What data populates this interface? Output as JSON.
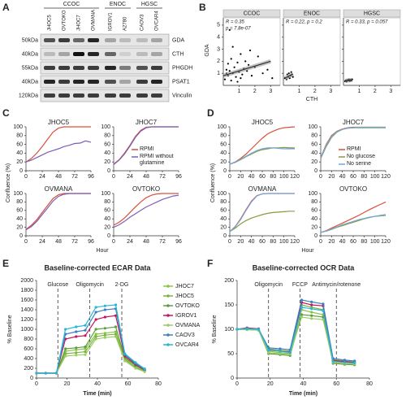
{
  "chart_data": [
    {
      "type": "blot",
      "label": "A",
      "groups": [
        {
          "name": "CCOC",
          "lanes": [
            "JHOC5",
            "OVTOKO",
            "JHOC7",
            "OVMANA"
          ]
        },
        {
          "name": "ENOC",
          "lanes": [
            "IGROV1",
            "A2780"
          ]
        },
        {
          "name": "HGSC",
          "lanes": [
            "CAOV3",
            "OVCAR4"
          ]
        }
      ],
      "rows": [
        {
          "marker": "50kDa",
          "protein": "GDA",
          "bands": [
            0.7,
            0.8,
            0.6,
            0.9,
            0.3,
            0.2,
            0.2,
            0.3
          ]
        },
        {
          "marker": "40kDa",
          "protein": "CTH",
          "bands": [
            0.2,
            0.3,
            1.0,
            0.9,
            0.6,
            0.1,
            0.2,
            0.3
          ]
        },
        {
          "marker": "55kDa",
          "protein": "PHGDH",
          "bands": [
            0.8,
            0.8,
            0.8,
            0.8,
            0.9,
            0.5,
            0.7,
            0.8
          ]
        },
        {
          "marker": "40kDa",
          "protein": "PSAT1",
          "bands": [
            0.9,
            0.8,
            0.9,
            0.9,
            0.7,
            0.3,
            0.8,
            0.9
          ]
        },
        {
          "marker": "120kDa",
          "protein": "Vinculin",
          "bands": [
            0.8,
            0.8,
            0.8,
            0.8,
            0.8,
            0.8,
            0.8,
            0.8
          ]
        }
      ]
    },
    {
      "type": "scatter",
      "label": "B",
      "xlabel": "CTH",
      "ylabel": "GDA",
      "xlim": [
        0,
        3.6
      ],
      "xticks": [
        1,
        2,
        3
      ],
      "ylim": [
        0,
        5.6
      ],
      "yticks": [
        1,
        2,
        3,
        4,
        5
      ],
      "facets": [
        {
          "name": "CCOC",
          "annotations": [
            "R = 0.35",
            "p = 7.8e-07"
          ],
          "x": [
            0.1,
            0.2,
            0.3,
            0.3,
            0.4,
            0.5,
            0.5,
            0.6,
            0.7,
            0.8,
            0.9,
            1.0,
            1.1,
            1.2,
            1.3,
            1.4,
            1.5,
            1.6,
            1.8,
            2.0,
            2.2,
            2.5,
            2.8,
            3.1,
            0.4,
            0.6,
            0.9,
            1.1,
            0.2,
            1.7
          ],
          "y": [
            0.5,
            1.0,
            0.8,
            1.8,
            1.2,
            0.4,
            2.2,
            1.0,
            1.5,
            0.7,
            1.9,
            1.1,
            2.6,
            0.9,
            1.4,
            2.0,
            1.2,
            1.7,
            0.8,
            1.5,
            2.4,
            1.0,
            1.3,
            0.6,
            4.6,
            3.2,
            0.3,
            0.6,
            1.3,
            2.9
          ],
          "fit_x": [
            0,
            3
          ],
          "fit_y": [
            0.8,
            2.0
          ]
        },
        {
          "name": "ENOC",
          "annotations": [
            "R = 0.22, p = 0.2"
          ],
          "x": [
            0.1,
            0.2,
            0.25,
            0.3,
            0.35,
            0.4,
            0.45,
            0.5,
            0.55,
            0.6
          ],
          "y": [
            0.6,
            0.5,
            0.9,
            0.7,
            1.0,
            0.6,
            0.8,
            1.1,
            0.9,
            0.7
          ],
          "fit_x": [
            0.1,
            0.6
          ],
          "fit_y": [
            0.6,
            0.95
          ]
        },
        {
          "name": "HGSC",
          "annotations": [
            "R = 0.33, p = 0.057"
          ],
          "x": [
            0.1,
            0.15,
            0.2,
            0.25,
            0.3,
            0.35,
            0.4,
            0.45,
            0.5,
            0.55
          ],
          "y": [
            0.35,
            0.4,
            0.3,
            0.45,
            0.4,
            0.5,
            0.35,
            0.45,
            0.4,
            0.5
          ],
          "fit_x": [
            0.1,
            0.55
          ],
          "fit_y": [
            0.38,
            0.46
          ]
        }
      ]
    },
    {
      "type": "line",
      "label": "C",
      "xlabel": "Hour",
      "ylabel": "Confluence (%)",
      "xlim": [
        0,
        96
      ],
      "xticks": [
        0,
        24,
        48,
        72,
        96
      ],
      "ylim": [
        0,
        100
      ],
      "yticks": [
        0,
        20,
        40,
        60,
        80,
        100
      ],
      "x": [
        0,
        8,
        16,
        24,
        32,
        40,
        48,
        56,
        64,
        72,
        80,
        88,
        96
      ],
      "series": [
        {
          "name": "RPMI",
          "color": "#d94f3a"
        },
        {
          "name": "RPMI without glutamine",
          "color": "#7b5fb5"
        }
      ],
      "panels": [
        {
          "title": "JHOC5",
          "values": [
            [
              20,
              28,
              40,
              55,
              72,
              88,
              97,
              100,
              100,
              100,
              100,
              100,
              100
            ],
            [
              20,
              24,
              30,
              36,
              42,
              46,
              50,
              55,
              58,
              62,
              63,
              68,
              65
            ]
          ]
        },
        {
          "title": "JHOC7",
          "values": [
            [
              15,
              25,
              40,
              58,
              78,
              92,
              99,
              100,
              100,
              100,
              100,
              100,
              100
            ],
            [
              14,
              24,
              38,
              56,
              76,
              90,
              98,
              100,
              100,
              100,
              100,
              100,
              100
            ]
          ]
        },
        {
          "title": "OVMANA",
          "values": [
            [
              15,
              25,
              38,
              55,
              72,
              88,
              97,
              100,
              100,
              100,
              100,
              100,
              100
            ],
            [
              14,
              22,
              34,
              50,
              66,
              82,
              93,
              98,
              100,
              100,
              100,
              100,
              100
            ]
          ]
        },
        {
          "title": "OVTOKO",
          "values": [
            [
              25,
              32,
              42,
              55,
              68,
              80,
              90,
              96,
              99,
              100,
              100,
              100,
              100
            ],
            [
              20,
              26,
              34,
              44,
              52,
              60,
              68,
              74,
              80,
              86,
              90,
              94,
              96
            ]
          ]
        }
      ]
    },
    {
      "type": "line",
      "label": "D",
      "xlabel": "Hour",
      "ylabel": "Confluence (%)",
      "xlim": [
        0,
        120
      ],
      "xticks": [
        0,
        20,
        40,
        60,
        80,
        100,
        120
      ],
      "ylim": [
        0,
        100
      ],
      "yticks": [
        0,
        20,
        40,
        60,
        80,
        100
      ],
      "x": [
        0,
        10,
        20,
        30,
        40,
        50,
        60,
        70,
        80,
        90,
        100,
        110,
        120
      ],
      "series": [
        {
          "name": "RPMI",
          "color": "#d94f3a"
        },
        {
          "name": "No glucose",
          "color": "#8a9a3c"
        },
        {
          "name": "No serine",
          "color": "#6fa8dc"
        }
      ],
      "panels": [
        {
          "title": "JHOC5",
          "values": [
            [
              15,
              20,
              28,
              38,
              50,
              62,
              74,
              84,
              90,
              95,
              98,
              99,
              100
            ],
            [
              15,
              19,
              25,
              32,
              38,
              44,
              48,
              50,
              52,
              52,
              53,
              52,
              52
            ],
            [
              15,
              19,
              26,
              33,
              40,
              46,
              50,
              52,
              52,
              51,
              50,
              50,
              50
            ]
          ]
        },
        {
          "title": "JHOC7",
          "values": [
            [
              30,
              60,
              80,
              90,
              95,
              98,
              99,
              99,
              99,
              99,
              99,
              99,
              99
            ],
            [
              28,
              55,
              76,
              88,
              94,
              97,
              98,
              98,
              98,
              98,
              98,
              98,
              98
            ],
            [
              29,
              58,
              78,
              89,
              94,
              97,
              98,
              99,
              99,
              99,
              99,
              99,
              99
            ]
          ]
        },
        {
          "title": "OVMANA",
          "values": [
            [
              10,
              22,
              40,
              62,
              82,
              95,
              99,
              100,
              100,
              100,
              100,
              100,
              100
            ],
            [
              10,
              18,
              28,
              36,
              42,
              46,
              50,
              53,
              55,
              56,
              57,
              58,
              58
            ],
            [
              10,
              21,
              38,
              60,
              80,
              94,
              99,
              100,
              100,
              100,
              100,
              100,
              100
            ]
          ]
        },
        {
          "title": "OVTOKO",
          "values": [
            [
              8,
              12,
              18,
              24,
              30,
              36,
              42,
              48,
              55,
              62,
              68,
              74,
              80
            ],
            [
              8,
              11,
              15,
              20,
              24,
              28,
              32,
              36,
              40,
              43,
              46,
              48,
              50
            ],
            [
              8,
              11,
              16,
              21,
              26,
              30,
              34,
              38,
              41,
              44,
              46,
              47,
              48
            ]
          ]
        }
      ]
    },
    {
      "type": "line",
      "label": "E",
      "title": "Baseline-corrected ECAR Data",
      "xlabel": "Time (min)",
      "ylabel": "% Baseline",
      "xlim": [
        0,
        80
      ],
      "xticks": [
        0,
        20,
        40,
        60,
        80
      ],
      "ylim": [
        0,
        2000
      ],
      "yticks": [
        0,
        200,
        400,
        600,
        800,
        1000,
        1200,
        1400,
        1600,
        1800,
        2000
      ],
      "events": [
        {
          "x": 14,
          "label": "Glucose"
        },
        {
          "x": 35,
          "label": "Oligomycin"
        },
        {
          "x": 56,
          "label": "2-DG"
        }
      ],
      "x": [
        0,
        6,
        13,
        19,
        26,
        32,
        39,
        45,
        52,
        58,
        65,
        71
      ],
      "series": [
        {
          "name": "JHOC7",
          "color": "#8bc34a",
          "values": [
            100,
            100,
            100,
            550,
            580,
            600,
            900,
            920,
            950,
            400,
            250,
            150
          ]
        },
        {
          "name": "JHOC5",
          "color": "#7cb342",
          "values": [
            100,
            100,
            100,
            500,
            520,
            540,
            850,
            880,
            900,
            380,
            220,
            140
          ]
        },
        {
          "name": "OVTOKO",
          "color": "#5e9e3a",
          "values": [
            100,
            100,
            100,
            600,
            620,
            640,
            1000,
            1020,
            1050,
            420,
            260,
            160
          ]
        },
        {
          "name": "IGROV1",
          "color": "#c2185b",
          "values": [
            100,
            100,
            100,
            800,
            850,
            870,
            1200,
            1250,
            1280,
            450,
            280,
            170
          ]
        },
        {
          "name": "OVMANA",
          "color": "#9ccc65",
          "values": [
            100,
            100,
            100,
            450,
            470,
            480,
            800,
            830,
            850,
            350,
            200,
            130
          ]
        },
        {
          "name": "CAOV3",
          "color": "#3f7fbf",
          "values": [
            100,
            100,
            100,
            900,
            950,
            980,
            1350,
            1400,
            1420,
            480,
            300,
            180
          ]
        },
        {
          "name": "OVCAR4",
          "color": "#29b6d6",
          "values": [
            100,
            100,
            100,
            1000,
            1050,
            1080,
            1450,
            1480,
            1500,
            500,
            320,
            190
          ]
        }
      ]
    },
    {
      "type": "line",
      "label": "F",
      "title": "Baseline-corrected OCR Data",
      "xlabel": "Time (min)",
      "ylabel": "% Baseline",
      "xlim": [
        0,
        80
      ],
      "xticks": [
        0,
        20,
        40,
        60,
        80
      ],
      "ylim": [
        0,
        200
      ],
      "yticks": [
        0,
        50,
        100,
        150,
        200
      ],
      "events": [
        {
          "x": 19,
          "label": "Oligomycin"
        },
        {
          "x": 38,
          "label": "FCCP"
        },
        {
          "x": 60,
          "label": "Antimycin/rotenone"
        }
      ],
      "x": [
        0,
        6,
        13,
        19,
        26,
        32,
        39,
        45,
        52,
        58,
        65,
        71
      ],
      "series": [
        {
          "color": "#8bc34a",
          "values": [
            100,
            102,
            100,
            55,
            52,
            50,
            140,
            135,
            130,
            35,
            32,
            30
          ]
        },
        {
          "color": "#7cb342",
          "values": [
            100,
            101,
            99,
            60,
            57,
            55,
            150,
            145,
            140,
            38,
            35,
            33
          ]
        },
        {
          "color": "#5e9e3a",
          "values": [
            100,
            100,
            98,
            50,
            48,
            46,
            130,
            128,
            125,
            30,
            28,
            27
          ]
        },
        {
          "color": "#c2185b",
          "values": [
            100,
            103,
            101,
            58,
            55,
            53,
            155,
            150,
            148,
            36,
            34,
            32
          ]
        },
        {
          "color": "#9ccc65",
          "values": [
            100,
            99,
            98,
            52,
            50,
            49,
            125,
            122,
            120,
            32,
            30,
            29
          ]
        },
        {
          "color": "#3f7fbf",
          "values": [
            100,
            102,
            100,
            62,
            60,
            58,
            160,
            156,
            152,
            40,
            37,
            35
          ]
        },
        {
          "color": "#29b6d6",
          "values": [
            100,
            101,
            100,
            57,
            55,
            52,
            145,
            142,
            138,
            34,
            32,
            31
          ]
        }
      ]
    }
  ]
}
